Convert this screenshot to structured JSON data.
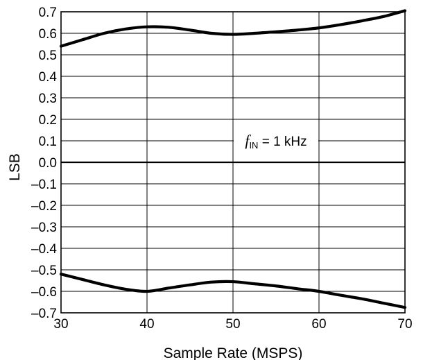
{
  "chart_data": {
    "type": "line",
    "xlabel": "Sample Rate (MSPS)",
    "ylabel": "LSB",
    "xlim": [
      30,
      70
    ],
    "ylim": [
      -0.7,
      0.7
    ],
    "x_ticks": [
      30,
      40,
      50,
      60,
      70
    ],
    "x_tick_labels": [
      "30",
      "40",
      "50",
      "60",
      "70"
    ],
    "y_ticks": [
      0.7,
      0.6,
      0.5,
      0.4,
      0.3,
      0.2,
      0.1,
      0.0,
      -0.1,
      -0.2,
      -0.3,
      -0.4,
      -0.5,
      -0.6,
      -0.7
    ],
    "y_tick_labels": [
      "0.7",
      "0.6",
      "0.5",
      "0.4",
      "0.3",
      "0.2",
      "0.1",
      "0.0",
      "–0.1",
      "–0.2",
      "–0.3",
      "–0.4",
      "–0.5",
      "–0.6",
      "–0.7"
    ],
    "grid": true,
    "series": [
      {
        "x": [
          30,
          32.5,
          35,
          37.5,
          40,
          42.5,
          45,
          47.5,
          50,
          52.5,
          55,
          57.5,
          60,
          62.5,
          65,
          67.5,
          70
        ],
        "values": [
          0.54,
          0.57,
          0.6,
          0.62,
          0.63,
          0.628,
          0.615,
          0.6,
          0.595,
          0.6,
          0.607,
          0.615,
          0.625,
          0.64,
          0.658,
          0.678,
          0.705
        ],
        "color": "#000000"
      },
      {
        "x": [
          30,
          32.5,
          35,
          37.5,
          40,
          42.5,
          45,
          47.5,
          50,
          52.5,
          55,
          57.5,
          60,
          62.5,
          65,
          67.5,
          70
        ],
        "values": [
          -0.52,
          -0.545,
          -0.57,
          -0.59,
          -0.6,
          -0.585,
          -0.57,
          -0.557,
          -0.555,
          -0.565,
          -0.575,
          -0.588,
          -0.6,
          -0.618,
          -0.635,
          -0.655,
          -0.675
        ],
        "color": "#000000"
      }
    ],
    "annotation": {
      "f_letter": "f",
      "subscript": "IN",
      "text": " = 1 kHz",
      "x": 55,
      "y": 0.1
    }
  }
}
